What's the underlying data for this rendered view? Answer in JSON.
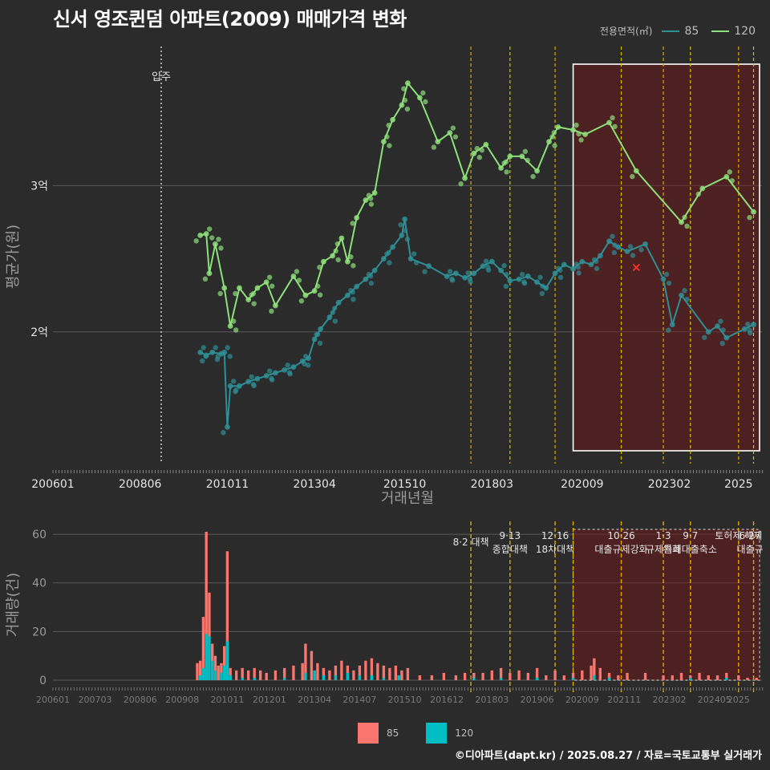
{
  "title": "신서 영조퀸덤 아파트(2009) 매매가격 변화",
  "legend_top": {
    "title": "전용면적(㎡)",
    "items": [
      {
        "label": "85",
        "color": "#2e8f95"
      },
      {
        "label": "120",
        "color": "#8ee07a"
      }
    ]
  },
  "legend_bottom": {
    "items": [
      {
        "label": "85",
        "color": "#f8766d"
      },
      {
        "label": "120",
        "color": "#00bfc4"
      }
    ]
  },
  "credit": "©디아파트(dapt.kr) / 2025.08.27 / 자료=국토교통부 실거래가",
  "chart_data": [
    {
      "type": "line",
      "xlabel": "거래년월",
      "ylabel": "평균가(원)",
      "x_range": [
        "2006-01",
        "2025-08"
      ],
      "x_ticks": [
        "200601",
        "200806",
        "201011",
        "201304",
        "201510",
        "201803",
        "202009",
        "202302",
        "2025"
      ],
      "y_ticks": [
        {
          "value": 2,
          "label": "2억"
        },
        {
          "value": 3,
          "label": "3억"
        }
      ],
      "ylim_eok": [
        1.1,
        3.95
      ],
      "move_in": {
        "date": "2009-01",
        "label": "입주"
      },
      "shaded_period": {
        "from": "2020-06",
        "to": "2025-08"
      },
      "red_marker": {
        "date": "2022-03",
        "value": 2.44
      },
      "policy_lines": [
        "2017-08",
        "2018-09",
        "2019-12",
        "2021-10",
        "2022-12",
        "2023-09",
        "2025-01",
        "2025-06"
      ],
      "series": [
        {
          "name": "85",
          "color": "#2e8f95",
          "points": [
            [
              "2010-02",
              1.86
            ],
            [
              "2010-04",
              1.84
            ],
            [
              "2010-06",
              1.86
            ],
            [
              "2010-09",
              1.85
            ],
            [
              "2010-10",
              1.86
            ],
            [
              "2010-11",
              1.35
            ],
            [
              "2010-12",
              1.63
            ],
            [
              "2011-03",
              1.63
            ],
            [
              "2011-06",
              1.66
            ],
            [
              "2011-09",
              1.68
            ],
            [
              "2011-12",
              1.7
            ],
            [
              "2012-03",
              1.72
            ],
            [
              "2012-06",
              1.74
            ],
            [
              "2012-09",
              1.76
            ],
            [
              "2012-12",
              1.8
            ],
            [
              "2013-02",
              1.82
            ],
            [
              "2013-04",
              1.95
            ],
            [
              "2013-06",
              2.02
            ],
            [
              "2013-09",
              2.1
            ],
            [
              "2013-12",
              2.2
            ],
            [
              "2014-03",
              2.25
            ],
            [
              "2014-06",
              2.31
            ],
            [
              "2014-09",
              2.36
            ],
            [
              "2014-12",
              2.42
            ],
            [
              "2015-03",
              2.5
            ],
            [
              "2015-06",
              2.58
            ],
            [
              "2015-09",
              2.66
            ],
            [
              "2015-10",
              2.77
            ],
            [
              "2015-12",
              2.5
            ],
            [
              "2016-06",
              2.45
            ],
            [
              "2016-12",
              2.38
            ],
            [
              "2017-03",
              2.4
            ],
            [
              "2017-06",
              2.37
            ],
            [
              "2017-09",
              2.4
            ],
            [
              "2017-12",
              2.45
            ],
            [
              "2018-03",
              2.48
            ],
            [
              "2018-06",
              2.42
            ],
            [
              "2018-09",
              2.35
            ],
            [
              "2018-12",
              2.36
            ],
            [
              "2019-03",
              2.38
            ],
            [
              "2019-06",
              2.34
            ],
            [
              "2019-09",
              2.3
            ],
            [
              "2019-12",
              2.4
            ],
            [
              "2020-03",
              2.46
            ],
            [
              "2020-06",
              2.43
            ],
            [
              "2020-09",
              2.48
            ],
            [
              "2020-12",
              2.46
            ],
            [
              "2021-03",
              2.52
            ],
            [
              "2021-06",
              2.62
            ],
            [
              "2021-09",
              2.58
            ],
            [
              "2021-12",
              2.55
            ],
            [
              "2022-06",
              2.6
            ],
            [
              "2022-12",
              2.36
            ],
            [
              "2023-03",
              2.05
            ],
            [
              "2023-06",
              2.25
            ],
            [
              "2024-03",
              2.0
            ],
            [
              "2024-06",
              2.04
            ],
            [
              "2024-09",
              1.96
            ],
            [
              "2025-03",
              2.02
            ],
            [
              "2025-06",
              2.05
            ]
          ]
        },
        {
          "name": "120",
          "color": "#8ee07a",
          "points": [
            [
              "2010-02",
              2.66
            ],
            [
              "2010-04",
              2.67
            ],
            [
              "2010-05",
              2.4
            ],
            [
              "2010-07",
              2.6
            ],
            [
              "2010-10",
              2.3
            ],
            [
              "2010-12",
              2.04
            ],
            [
              "2011-03",
              2.3
            ],
            [
              "2011-06",
              2.22
            ],
            [
              "2011-09",
              2.3
            ],
            [
              "2011-12",
              2.34
            ],
            [
              "2012-03",
              2.18
            ],
            [
              "2012-09",
              2.38
            ],
            [
              "2013-01",
              2.25
            ],
            [
              "2013-04",
              2.28
            ],
            [
              "2013-07",
              2.48
            ],
            [
              "2013-10",
              2.52
            ],
            [
              "2014-01",
              2.64
            ],
            [
              "2014-03",
              2.48
            ],
            [
              "2014-06",
              2.78
            ],
            [
              "2014-09",
              2.9
            ],
            [
              "2014-12",
              2.95
            ],
            [
              "2015-03",
              3.3
            ],
            [
              "2015-06",
              3.45
            ],
            [
              "2015-09",
              3.55
            ],
            [
              "2015-11",
              3.7
            ],
            [
              "2016-03",
              3.6
            ],
            [
              "2016-09",
              3.3
            ],
            [
              "2017-01",
              3.36
            ],
            [
              "2017-06",
              3.05
            ],
            [
              "2017-09",
              3.22
            ],
            [
              "2018-01",
              3.28
            ],
            [
              "2018-06",
              3.12
            ],
            [
              "2018-09",
              3.2
            ],
            [
              "2019-01",
              3.2
            ],
            [
              "2019-06",
              3.1
            ],
            [
              "2019-10",
              3.3
            ],
            [
              "2020-01",
              3.4
            ],
            [
              "2020-06",
              3.38
            ],
            [
              "2020-10",
              3.35
            ],
            [
              "2021-06",
              3.43
            ],
            [
              "2022-03",
              3.1
            ],
            [
              "2023-06",
              2.75
            ],
            [
              "2024-01",
              2.98
            ],
            [
              "2024-09",
              3.06
            ],
            [
              "2025-06",
              2.82
            ]
          ]
        }
      ]
    },
    {
      "type": "bar",
      "xlabel": "",
      "ylabel": "거래량(건)",
      "x_ticks": [
        "200601",
        "200703",
        "200806",
        "200908",
        "201011",
        "201201",
        "201304",
        "201407",
        "201510",
        "201612",
        "201803",
        "201906",
        "202009",
        "202111",
        "202302",
        "202405",
        "2025"
      ],
      "y_ticks": [
        0,
        20,
        40,
        60
      ],
      "ylim": [
        0,
        62
      ],
      "shaded_period": {
        "from": "2020-06",
        "to": "2025-08"
      },
      "policies": [
        {
          "date": "2017-08",
          "lines": [
            "8·2 대책"
          ]
        },
        {
          "date": "2018-09",
          "lines": [
            "9·13",
            "종합대책"
          ]
        },
        {
          "date": "2019-12",
          "lines": [
            "12·16",
            "18차대책"
          ]
        },
        {
          "date": "2020-06",
          "lines": []
        },
        {
          "date": "2021-10",
          "lines": [
            "10·26",
            "대출규제강화"
          ]
        },
        {
          "date": "2022-12",
          "lines": [
            "1·3",
            "규제완화"
          ]
        },
        {
          "date": "2023-09",
          "lines": [
            "9·7",
            "특례대출축소"
          ]
        },
        {
          "date": "2025-01",
          "lines": [
            "토허제 해제"
          ]
        },
        {
          "date": "2025-06",
          "lines": [
            "6·27",
            "대출규"
          ]
        }
      ],
      "series": [
        {
          "name": "85",
          "color": "#f8766d",
          "months": [
            [
              "2010-01",
              7
            ],
            [
              "2010-02",
              8
            ],
            [
              "2010-03",
              26
            ],
            [
              "2010-04",
              61
            ],
            [
              "2010-05",
              36
            ],
            [
              "2010-06",
              15
            ],
            [
              "2010-07",
              10
            ],
            [
              "2010-08",
              6
            ],
            [
              "2010-09",
              7
            ],
            [
              "2010-10",
              14
            ],
            [
              "2010-11",
              53
            ],
            [
              "2010-12",
              5
            ],
            [
              "2011-02",
              4
            ],
            [
              "2011-04",
              5
            ],
            [
              "2011-06",
              4
            ],
            [
              "2011-08",
              5
            ],
            [
              "2011-10",
              4
            ],
            [
              "2011-12",
              3
            ],
            [
              "2012-03",
              4
            ],
            [
              "2012-06",
              5
            ],
            [
              "2012-09",
              6
            ],
            [
              "2012-12",
              7
            ],
            [
              "2013-01",
              15
            ],
            [
              "2013-03",
              12
            ],
            [
              "2013-05",
              7
            ],
            [
              "2013-07",
              5
            ],
            [
              "2013-09",
              4
            ],
            [
              "2013-11",
              6
            ],
            [
              "2014-01",
              8
            ],
            [
              "2014-03",
              6
            ],
            [
              "2014-05",
              4
            ],
            [
              "2014-07",
              6
            ],
            [
              "2014-09",
              8
            ],
            [
              "2014-11",
              9
            ],
            [
              "2015-01",
              7
            ],
            [
              "2015-03",
              6
            ],
            [
              "2015-05",
              5
            ],
            [
              "2015-07",
              6
            ],
            [
              "2015-09",
              4
            ],
            [
              "2015-11",
              5
            ],
            [
              "2016-03",
              2
            ],
            [
              "2016-07",
              2
            ],
            [
              "2016-11",
              3
            ],
            [
              "2017-03",
              2
            ],
            [
              "2017-06",
              3
            ],
            [
              "2017-09",
              3
            ],
            [
              "2017-12",
              3
            ],
            [
              "2018-03",
              4
            ],
            [
              "2018-06",
              5
            ],
            [
              "2018-09",
              3
            ],
            [
              "2018-12",
              4
            ],
            [
              "2019-03",
              3
            ],
            [
              "2019-06",
              5
            ],
            [
              "2019-09",
              2
            ],
            [
              "2019-12",
              4
            ],
            [
              "2020-03",
              2
            ],
            [
              "2020-06",
              3
            ],
            [
              "2020-09",
              4
            ],
            [
              "2020-12",
              6
            ],
            [
              "2021-01",
              9
            ],
            [
              "2021-03",
              5
            ],
            [
              "2021-06",
              3
            ],
            [
              "2021-09",
              2
            ],
            [
              "2021-12",
              3
            ],
            [
              "2022-06",
              3
            ],
            [
              "2022-12",
              2
            ],
            [
              "2023-03",
              2
            ],
            [
              "2023-06",
              3
            ],
            [
              "2023-09",
              2
            ],
            [
              "2023-12",
              3
            ],
            [
              "2024-03",
              2
            ],
            [
              "2024-06",
              2
            ],
            [
              "2024-09",
              3
            ],
            [
              "2025-01",
              2
            ],
            [
              "2025-04",
              1
            ],
            [
              "2025-07",
              1
            ]
          ]
        },
        {
          "name": "120",
          "color": "#00bfc4",
          "months": [
            [
              "2010-02",
              2
            ],
            [
              "2010-03",
              5
            ],
            [
              "2010-04",
              19
            ],
            [
              "2010-05",
              18
            ],
            [
              "2010-06",
              8
            ],
            [
              "2010-07",
              4
            ],
            [
              "2010-09",
              3
            ],
            [
              "2010-10",
              6
            ],
            [
              "2010-11",
              16
            ],
            [
              "2010-12",
              2
            ],
            [
              "2011-04",
              1
            ],
            [
              "2011-08",
              1
            ],
            [
              "2012-06",
              1
            ],
            [
              "2013-01",
              3
            ],
            [
              "2013-04",
              4
            ],
            [
              "2013-07",
              2
            ],
            [
              "2013-11",
              2
            ],
            [
              "2014-03",
              3
            ],
            [
              "2014-07",
              2
            ],
            [
              "2014-11",
              2
            ],
            [
              "2015-03",
              1
            ],
            [
              "2015-08",
              2
            ],
            [
              "2017-09",
              1
            ],
            [
              "2018-06",
              1
            ],
            [
              "2019-06",
              1
            ],
            [
              "2020-06",
              1
            ],
            [
              "2021-01",
              2
            ],
            [
              "2021-06",
              1
            ],
            [
              "2023-09",
              1
            ],
            [
              "2024-09",
              1
            ]
          ]
        }
      ]
    }
  ]
}
